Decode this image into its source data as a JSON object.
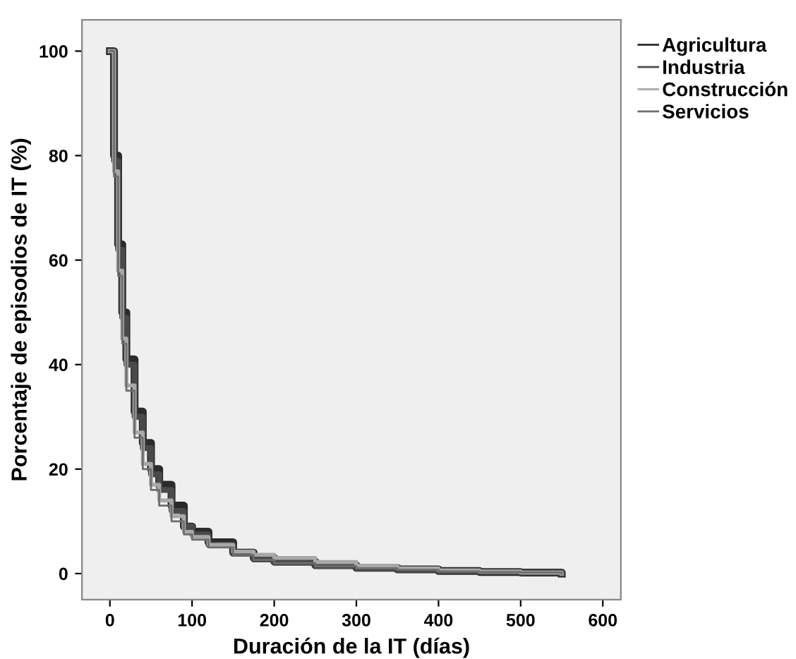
{
  "chart_data": {
    "type": "step",
    "xlabel": "Duración de la IT (días)",
    "ylabel": "Porcentaje de episodios de IT (%)",
    "xlim": [
      -34,
      622
    ],
    "ylim": [
      -5,
      106
    ],
    "xticks": [
      0,
      100,
      200,
      300,
      400,
      500,
      600
    ],
    "yticks": [
      0,
      20,
      40,
      60,
      80,
      100
    ],
    "grid": false,
    "legend": "top right",
    "marker": "none",
    "line_style": "solid",
    "series": [
      {
        "name": "Agricultura",
        "color": "#2b2b2b",
        "x": [
          0,
          5,
          10,
          15,
          20,
          30,
          40,
          50,
          60,
          75,
          90,
          100,
          120,
          150,
          175,
          200,
          250,
          300,
          350,
          400,
          450,
          500,
          550
        ],
        "values": [
          100,
          80,
          63,
          50,
          41,
          31,
          25,
          20,
          17,
          13,
          9,
          8,
          6,
          4,
          3,
          2.3,
          1.6,
          1.1,
          0.8,
          0.5,
          0.3,
          0.2,
          0
        ]
      },
      {
        "name": "Industria",
        "color": "#4a4a4a",
        "x": [
          0,
          5,
          10,
          15,
          20,
          30,
          40,
          50,
          60,
          75,
          90,
          100,
          120,
          150,
          175,
          200,
          250,
          300,
          350,
          400,
          450,
          500,
          550
        ],
        "values": [
          100,
          79,
          62,
          49,
          40,
          30,
          24,
          19,
          16,
          12,
          9,
          7.5,
          5.5,
          3.8,
          2.7,
          2.1,
          1.5,
          1,
          0.7,
          0.5,
          0.3,
          0.2,
          0
        ]
      },
      {
        "name": "Construcción",
        "color": "#a8a8a8",
        "x": [
          0,
          5,
          10,
          15,
          20,
          30,
          40,
          50,
          60,
          75,
          90,
          100,
          120,
          150,
          175,
          200,
          250,
          300,
          350,
          400,
          450,
          500,
          550
        ],
        "values": [
          100,
          77,
          58,
          45,
          36,
          27,
          21,
          17,
          14,
          11,
          8,
          7,
          5.5,
          4.2,
          3.6,
          3,
          2.2,
          1.5,
          1,
          0.6,
          0.4,
          0.2,
          0
        ]
      },
      {
        "name": "Servicios",
        "color": "#6e6e6e",
        "x": [
          0,
          5,
          10,
          15,
          20,
          30,
          40,
          50,
          60,
          75,
          90,
          100,
          120,
          150,
          175,
          200,
          250,
          300,
          350,
          400,
          450,
          500,
          550
        ],
        "values": [
          100,
          76,
          57,
          44,
          35,
          26,
          20,
          16,
          13,
          10,
          7.5,
          6.5,
          5,
          3.5,
          2.6,
          2,
          1.4,
          1,
          0.7,
          0.4,
          0.3,
          0.2,
          0
        ]
      }
    ]
  }
}
